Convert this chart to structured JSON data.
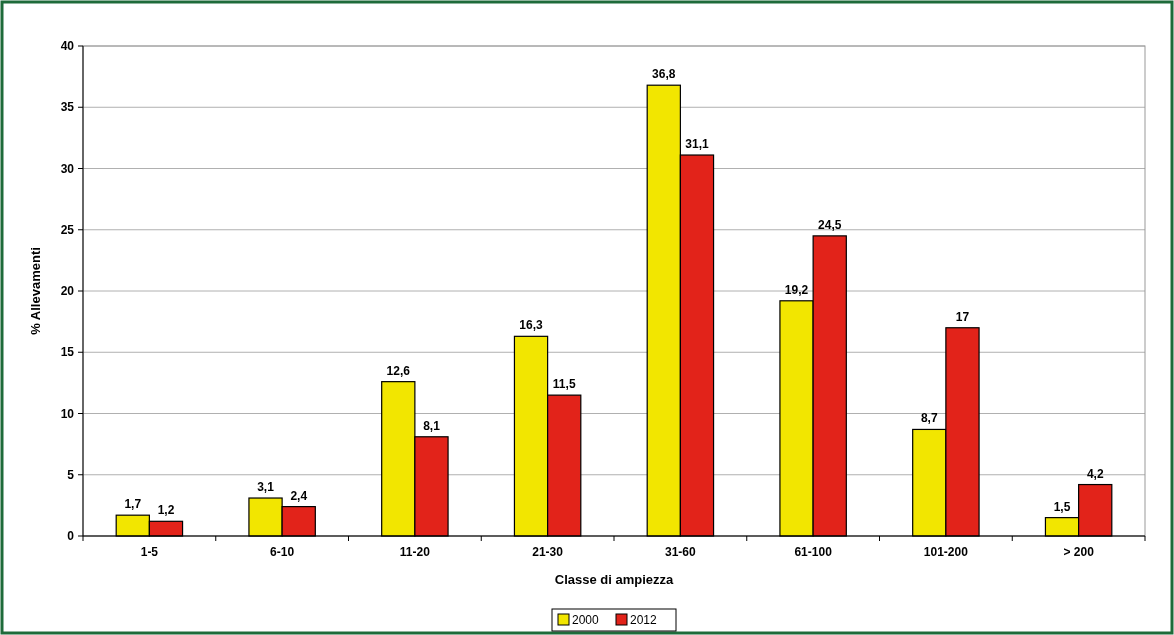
{
  "chart_data": {
    "type": "bar",
    "xlabel": "Classe di ampiezza",
    "ylabel": "% Allevamenti",
    "categories": [
      "1-5",
      "6-10",
      "11-20",
      "21-30",
      "31-60",
      "61-100",
      "101-200",
      "> 200"
    ],
    "series": [
      {
        "name": "2000",
        "color": "#f2e600",
        "values": [
          1.7,
          3.1,
          12.6,
          16.3,
          36.8,
          19.2,
          8.7,
          1.5
        ],
        "value_labels": [
          "1,7",
          "3,1",
          "12,6",
          "16,3",
          "36,8",
          "19,2",
          "8,7",
          "1,5"
        ]
      },
      {
        "name": "2012",
        "color": "#e2231a",
        "values": [
          1.2,
          2.4,
          8.1,
          11.5,
          31.1,
          24.5,
          17,
          4.2
        ],
        "value_labels": [
          "1,2",
          "2,4",
          "8,1",
          "11,5",
          "31,1",
          "24,5",
          "17",
          "4,2"
        ]
      }
    ],
    "ylim": [
      0,
      40
    ],
    "yticks": [
      0,
      5,
      10,
      15,
      20,
      25,
      30,
      35,
      40
    ],
    "grid": "y",
    "legend": "bottom"
  }
}
